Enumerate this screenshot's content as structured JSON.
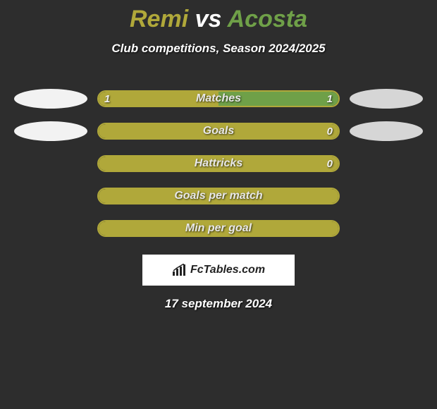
{
  "title": {
    "player1": "Remi",
    "vs": "vs",
    "player2": "Acosta",
    "color_p1": "#b0a83a",
    "color_p2": "#6fa048"
  },
  "subtitle": "Club competitions, Season 2024/2025",
  "colors": {
    "left_fill": "#b0a83a",
    "right_fill": "#6fa048",
    "bar_border": "#b0a83a",
    "oval_left": "#f2f2f2",
    "oval_right": "#d6d6d6",
    "bg": "#2d2d2d"
  },
  "rows": [
    {
      "label": "Matches",
      "left_val": "1",
      "right_val": "1",
      "left_pct": 50,
      "right_pct": 50,
      "show_ovals": true
    },
    {
      "label": "Goals",
      "left_val": "",
      "right_val": "0",
      "left_pct": 100,
      "right_pct": 0,
      "show_ovals": true
    },
    {
      "label": "Hattricks",
      "left_val": "",
      "right_val": "0",
      "left_pct": 100,
      "right_pct": 0,
      "show_ovals": false
    },
    {
      "label": "Goals per match",
      "left_val": "",
      "right_val": "",
      "left_pct": 100,
      "right_pct": 0,
      "show_ovals": false
    },
    {
      "label": "Min per goal",
      "left_val": "",
      "right_val": "",
      "left_pct": 100,
      "right_pct": 0,
      "show_ovals": false
    }
  ],
  "logo_text": "FcTables.com",
  "date": "17 september 2024"
}
